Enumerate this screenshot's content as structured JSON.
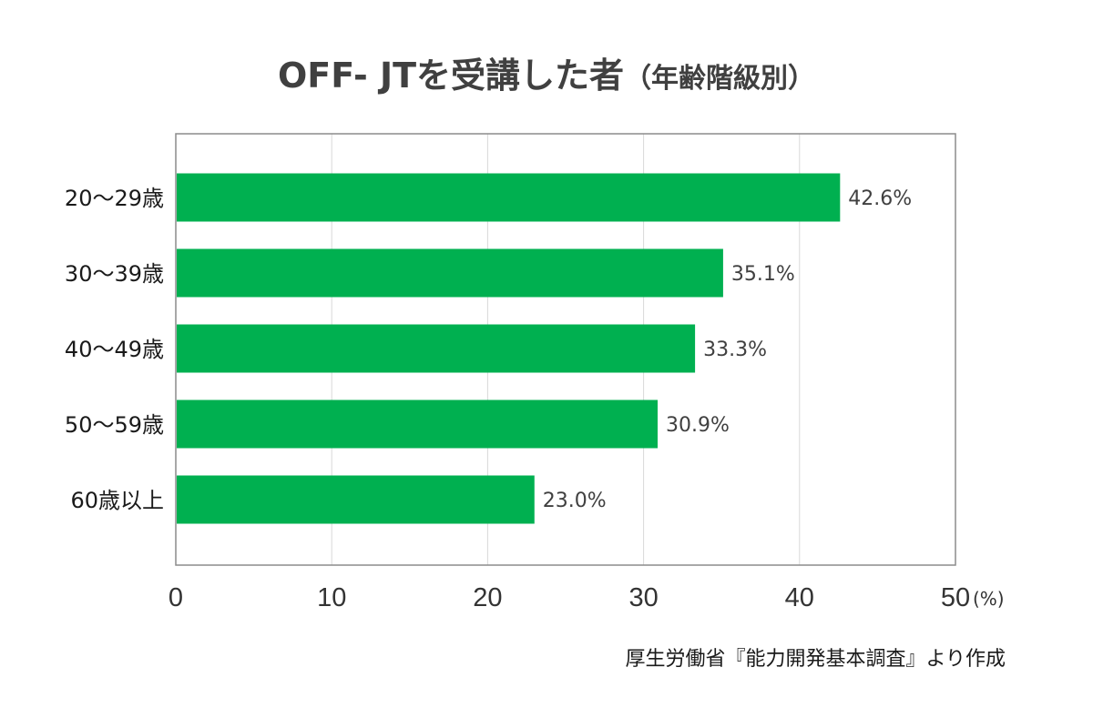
{
  "chart_data": {
    "type": "bar",
    "orientation": "horizontal",
    "title": "OFF- JTを受講した者",
    "subtitle": "（年齢階級別）",
    "categories": [
      "20～29歳",
      "30～39歳",
      "40～49歳",
      "50～59歳",
      "60歳以上"
    ],
    "values": [
      42.6,
      35.1,
      33.3,
      30.9,
      23.0
    ],
    "data_labels": [
      "42.6%",
      "35.1%",
      "33.3%",
      "30.9%",
      "23.0%"
    ],
    "xlim": [
      0,
      50
    ],
    "xticks": [
      0,
      10,
      20,
      30,
      40,
      50
    ],
    "x_unit": "(%)",
    "grid": "vertical",
    "bar_color": "#00b050",
    "source": "厚生労働省『能力開発基本調査』より作成"
  }
}
